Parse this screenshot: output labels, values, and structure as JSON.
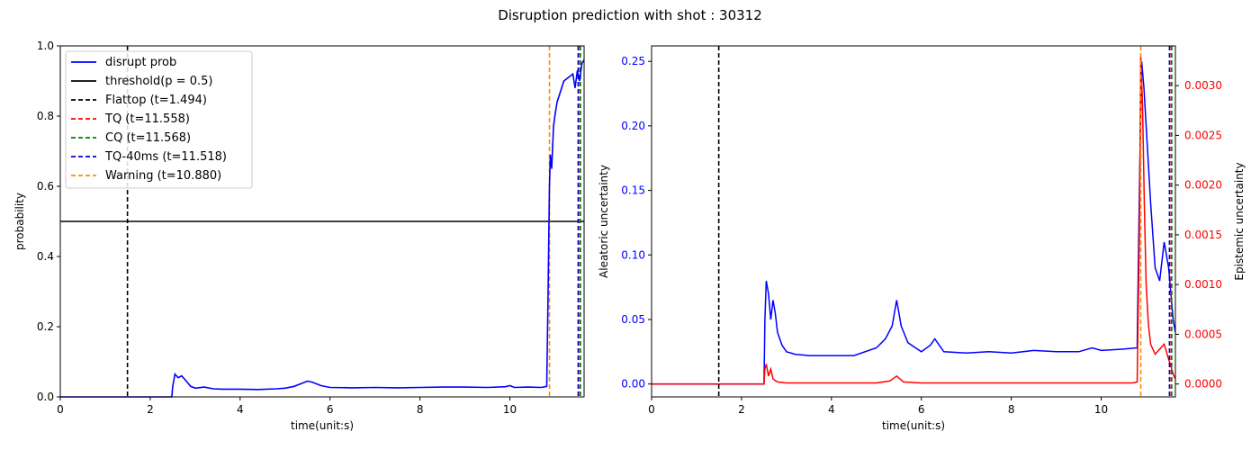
{
  "suptitle": "Disruption prediction with shot : 30312",
  "colors": {
    "prob": "#0000ff",
    "threshold": "#000000",
    "flattop": "#000000",
    "tq": "#ff0000",
    "cq": "#008000",
    "tq40": "#0000cd",
    "warning": "#ff8c00",
    "aleatoric": "#0000ff",
    "epistemic": "#ff0000"
  },
  "chart_data": [
    {
      "type": "line",
      "xlabel": "time(unit:s)",
      "ylabel": "probability",
      "xlim": [
        0,
        11.65
      ],
      "ylim": [
        0,
        1.0
      ],
      "xticks": [
        "0",
        "2",
        "4",
        "6",
        "8",
        "10"
      ],
      "yticks": [
        "0.0",
        "0.2",
        "0.4",
        "0.6",
        "0.8",
        "1.0"
      ],
      "legend_position": "top-left",
      "legend": [
        "disrupt prob",
        "threshold(p = 0.5)",
        "Flattop (t=1.494)",
        "TQ (t=11.558)",
        "CQ (t=11.568)",
        "TQ-40ms (t=11.518)",
        "Warning (t=10.880)"
      ],
      "threshold": 0.5,
      "vlines": [
        {
          "name": "Flattop",
          "x": 1.494
        },
        {
          "name": "TQ",
          "x": 11.558
        },
        {
          "name": "CQ",
          "x": 11.568
        },
        {
          "name": "TQ-40ms",
          "x": 11.518
        },
        {
          "name": "Warning",
          "x": 10.88
        }
      ],
      "series": [
        {
          "name": "disrupt prob",
          "x": [
            0,
            2.48,
            2.5,
            2.55,
            2.62,
            2.7,
            2.8,
            2.9,
            3.0,
            3.2,
            3.4,
            3.6,
            4.0,
            4.4,
            4.8,
            5.0,
            5.2,
            5.4,
            5.5,
            5.6,
            5.8,
            6.0,
            6.5,
            7.0,
            7.5,
            8.0,
            8.5,
            9.0,
            9.5,
            9.9,
            10.0,
            10.1,
            10.4,
            10.7,
            10.82,
            10.85,
            10.88,
            10.9,
            10.93,
            10.97,
            11.0,
            11.05,
            11.1,
            11.2,
            11.3,
            11.4,
            11.45,
            11.5,
            11.55,
            11.6,
            11.65
          ],
          "y": [
            0.0,
            0.0,
            0.03,
            0.065,
            0.055,
            0.06,
            0.045,
            0.03,
            0.025,
            0.028,
            0.023,
            0.022,
            0.022,
            0.021,
            0.023,
            0.025,
            0.03,
            0.04,
            0.045,
            0.042,
            0.032,
            0.027,
            0.026,
            0.027,
            0.026,
            0.027,
            0.028,
            0.028,
            0.027,
            0.029,
            0.032,
            0.027,
            0.028,
            0.027,
            0.03,
            0.3,
            0.6,
            0.69,
            0.65,
            0.77,
            0.8,
            0.84,
            0.86,
            0.9,
            0.91,
            0.92,
            0.88,
            0.93,
            0.9,
            0.95,
            0.96
          ]
        }
      ]
    },
    {
      "type": "line",
      "xlabel": "time(unit:s)",
      "ylabel": "Aleatoric uncertainty",
      "y2label": "Epistemic uncertainty",
      "xlim": [
        0,
        11.65
      ],
      "ylim": [
        -0.01,
        0.262
      ],
      "y2lim": [
        -0.00013,
        0.0034
      ],
      "xticks": [
        "0",
        "2",
        "4",
        "6",
        "8",
        "10"
      ],
      "yticks": [
        "0.00",
        "0.05",
        "0.10",
        "0.15",
        "0.20",
        "0.25"
      ],
      "y2ticks": [
        "0.0000",
        "0.0005",
        "0.0010",
        "0.0015",
        "0.0020",
        "0.0025",
        "0.0030"
      ],
      "vlines": [
        {
          "name": "Flattop",
          "x": 1.494
        },
        {
          "name": "TQ",
          "x": 11.558
        },
        {
          "name": "CQ",
          "x": 11.568
        },
        {
          "name": "TQ-40ms",
          "x": 11.518
        },
        {
          "name": "Warning",
          "x": 10.88
        }
      ],
      "series": [
        {
          "name": "Aleatoric uncertainty",
          "axis": "left",
          "x": [
            0,
            2.5,
            2.52,
            2.55,
            2.6,
            2.65,
            2.7,
            2.75,
            2.8,
            2.9,
            3.0,
            3.2,
            3.5,
            4.0,
            4.5,
            5.0,
            5.2,
            5.35,
            5.45,
            5.55,
            5.7,
            6.0,
            6.2,
            6.3,
            6.5,
            7.0,
            7.5,
            8.0,
            8.5,
            9.0,
            9.5,
            9.8,
            10.0,
            10.5,
            10.8,
            10.85,
            10.9,
            10.95,
            11.0,
            11.1,
            11.2,
            11.3,
            11.4,
            11.5,
            11.6,
            11.65
          ],
          "y": [
            0.0,
            0.0,
            0.05,
            0.08,
            0.07,
            0.05,
            0.065,
            0.055,
            0.04,
            0.03,
            0.025,
            0.023,
            0.022,
            0.022,
            0.022,
            0.028,
            0.035,
            0.045,
            0.065,
            0.045,
            0.032,
            0.025,
            0.03,
            0.035,
            0.025,
            0.024,
            0.025,
            0.024,
            0.026,
            0.025,
            0.025,
            0.028,
            0.026,
            0.027,
            0.028,
            0.15,
            0.25,
            0.23,
            0.2,
            0.14,
            0.09,
            0.08,
            0.11,
            0.09,
            0.05,
            0.04
          ]
        },
        {
          "name": "Epistemic uncertainty",
          "axis": "right",
          "x": [
            0,
            2.5,
            2.52,
            2.55,
            2.6,
            2.65,
            2.7,
            2.8,
            3.0,
            3.5,
            4.0,
            4.5,
            5.0,
            5.3,
            5.45,
            5.6,
            6.0,
            7.0,
            8.0,
            9.0,
            10.0,
            10.7,
            10.8,
            10.85,
            10.88,
            10.92,
            10.96,
            11.0,
            11.05,
            11.1,
            11.2,
            11.3,
            11.4,
            11.5,
            11.6,
            11.65
          ],
          "y": [
            0.0,
            0.0,
            0.00015,
            0.0002,
            8e-05,
            0.00015,
            5e-05,
            2e-05,
            1e-05,
            1e-05,
            1e-05,
            1e-05,
            1e-05,
            3e-05,
            8e-05,
            2e-05,
            1e-05,
            1e-05,
            1e-05,
            1e-05,
            1e-05,
            1e-05,
            2e-05,
            0.0015,
            0.0033,
            0.0028,
            0.0018,
            0.001,
            0.0006,
            0.0004,
            0.0003,
            0.00035,
            0.0004,
            0.00025,
            0.0001,
            5e-05
          ]
        }
      ]
    }
  ]
}
